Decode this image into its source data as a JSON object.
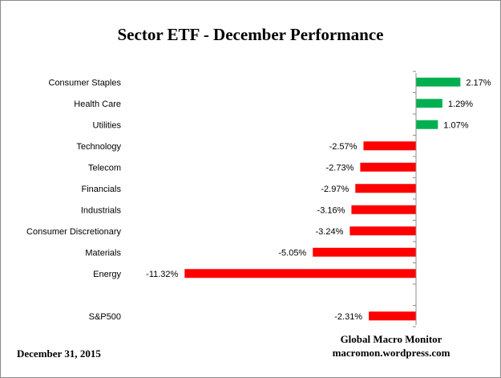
{
  "chart_data": {
    "type": "bar",
    "orientation": "horizontal",
    "title": "Sector ETF - December Performance",
    "categories": [
      "Consumer Staples",
      "Health Care",
      "Utilities",
      "Technology",
      "Telecom",
      "Financials",
      "Industrials",
      "Consumer Discretionary",
      "Materials",
      "Energy",
      "",
      "S&P500"
    ],
    "values": [
      2.17,
      1.29,
      1.07,
      -2.57,
      -2.73,
      -2.97,
      -3.16,
      -3.24,
      -5.05,
      -11.32,
      null,
      -2.31
    ],
    "labels": [
      "2.17%",
      "1.29%",
      "1.07%",
      "-2.57%",
      "-2.73%",
      "-2.97%",
      "-3.16%",
      "-3.24%",
      "-5.05%",
      "-11.32%",
      "",
      "-2.31%"
    ],
    "positive_color": "#00b050",
    "negative_color": "#ff0000",
    "grid": false,
    "legend": "none"
  },
  "footer": {
    "date": "December 31,  2015",
    "source_name": "Global Macro Monitor",
    "source_url": "macromon.wordpress.com"
  }
}
